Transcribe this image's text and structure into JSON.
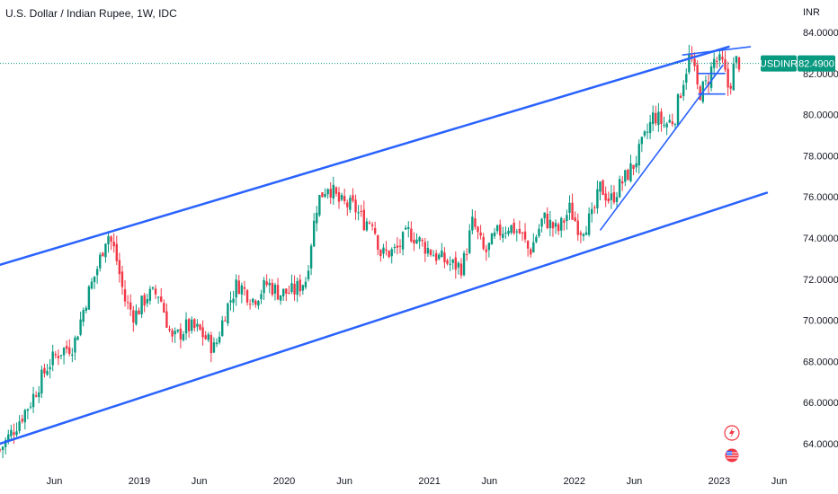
{
  "chart_data": {
    "type": "candlestick",
    "title": "U.S. Dollar / Indian Rupee, 1W, IDC",
    "symbol": "USDINR",
    "currency": "INR",
    "last_price": "82.4900",
    "y_ticks": [
      "64.0000",
      "66.0000",
      "68.0000",
      "70.0000",
      "72.0000",
      "74.0000",
      "76.0000",
      "78.0000",
      "80.0000",
      "82.0000",
      "84.0000"
    ],
    "y_tick_values": [
      64,
      66,
      68,
      70,
      72,
      74,
      76,
      78,
      80,
      82,
      84
    ],
    "ylim": [
      63.0,
      85.0
    ],
    "x_ticks": [
      "Jun",
      "2019",
      "Jun",
      "2020",
      "Jun",
      "2021",
      "Jun",
      "2022",
      "Jun",
      "2023",
      "Jun"
    ],
    "x_tick_dates": [
      "2018-06-01",
      "2019-01-01",
      "2019-06-01",
      "2020-01-01",
      "2020-06-01",
      "2021-01-01",
      "2021-06-01",
      "2022-01-01",
      "2022-06-01",
      "2023-01-01",
      "2023-06-01"
    ],
    "x_range": [
      "2018-01-15",
      "2023-07-15"
    ],
    "up_color": "#089981",
    "down_color": "#f23645",
    "line_color": "#2962ff",
    "price_path": [
      [
        "2018-01-15",
        63.7
      ],
      [
        "2018-02-15",
        64.6
      ],
      [
        "2018-04-01",
        66.0
      ],
      [
        "2018-05-15",
        67.8
      ],
      [
        "2018-06-15",
        68.5
      ],
      [
        "2018-07-20",
        68.8
      ],
      [
        "2018-08-20",
        71.0
      ],
      [
        "2018-09-20",
        72.7
      ],
      [
        "2018-10-12",
        74.3
      ],
      [
        "2018-11-01",
        73.3
      ],
      [
        "2018-11-25",
        71.0
      ],
      [
        "2018-12-20",
        70.2
      ],
      [
        "2019-01-20",
        71.2
      ],
      [
        "2019-02-20",
        71.3
      ],
      [
        "2019-03-25",
        69.0
      ],
      [
        "2019-05-01",
        69.7
      ],
      [
        "2019-06-01",
        69.5
      ],
      [
        "2019-07-10",
        68.6
      ],
      [
        "2019-08-05",
        70.4
      ],
      [
        "2019-09-05",
        71.8
      ],
      [
        "2019-10-15",
        71.0
      ],
      [
        "2019-11-20",
        71.8
      ],
      [
        "2019-12-20",
        71.3
      ],
      [
        "2020-01-25",
        71.4
      ],
      [
        "2020-02-25",
        72.0
      ],
      [
        "2020-03-10",
        74.0
      ],
      [
        "2020-03-25",
        75.8
      ],
      [
        "2020-04-20",
        76.6
      ],
      [
        "2020-05-20",
        75.7
      ],
      [
        "2020-06-25",
        75.5
      ],
      [
        "2020-07-20",
        74.8
      ],
      [
        "2020-08-10",
        74.9
      ],
      [
        "2020-09-01",
        73.2
      ],
      [
        "2020-10-10",
        73.4
      ],
      [
        "2020-11-10",
        74.3
      ],
      [
        "2020-12-20",
        73.6
      ],
      [
        "2021-01-20",
        73.1
      ],
      [
        "2021-02-25",
        72.7
      ],
      [
        "2021-03-25",
        72.6
      ],
      [
        "2021-04-20",
        74.8
      ],
      [
        "2021-05-20",
        73.2
      ],
      [
        "2021-06-20",
        74.2
      ],
      [
        "2021-07-20",
        74.6
      ],
      [
        "2021-08-20",
        74.2
      ],
      [
        "2021-09-10",
        73.3
      ],
      [
        "2021-10-15",
        75.0
      ],
      [
        "2021-11-20",
        74.3
      ],
      [
        "2021-12-20",
        75.4
      ],
      [
        "2022-01-15",
        74.4
      ],
      [
        "2022-02-15",
        75.0
      ],
      [
        "2022-03-08",
        76.5
      ],
      [
        "2022-04-01",
        75.8
      ],
      [
        "2022-05-01",
        76.7
      ],
      [
        "2022-06-01",
        77.6
      ],
      [
        "2022-07-01",
        79.0
      ],
      [
        "2022-07-20",
        80.0
      ],
      [
        "2022-08-15",
        79.5
      ],
      [
        "2022-09-10",
        79.8
      ],
      [
        "2022-09-30",
        81.5
      ],
      [
        "2022-10-20",
        83.0
      ],
      [
        "2022-11-10",
        81.0
      ],
      [
        "2022-12-01",
        81.5
      ],
      [
        "2022-12-20",
        82.7
      ],
      [
        "2023-01-10",
        82.4
      ],
      [
        "2023-01-25",
        81.2
      ],
      [
        "2023-02-10",
        82.6
      ],
      [
        "2023-02-25",
        82.5
      ]
    ],
    "trendlines": [
      {
        "from": [
          "2018-01-15",
          72.7
        ],
        "to": [
          "2023-01-25",
          83.3
        ]
      },
      {
        "from": [
          "2018-01-15",
          64.0
        ],
        "to": [
          "2023-05-01",
          76.2
        ]
      },
      {
        "from": [
          "2022-03-08",
          74.4
        ],
        "to": [
          "2023-01-10",
          82.4
        ]
      },
      {
        "from": [
          "2022-11-10",
          82.0
        ],
        "to": [
          "2023-01-15",
          82.0
        ]
      },
      {
        "from": [
          "2022-11-10",
          81.0
        ],
        "to": [
          "2023-01-15",
          81.0
        ]
      },
      {
        "from": [
          "2022-10-01",
          82.9
        ],
        "to": [
          "2023-03-20",
          83.3
        ]
      }
    ]
  }
}
